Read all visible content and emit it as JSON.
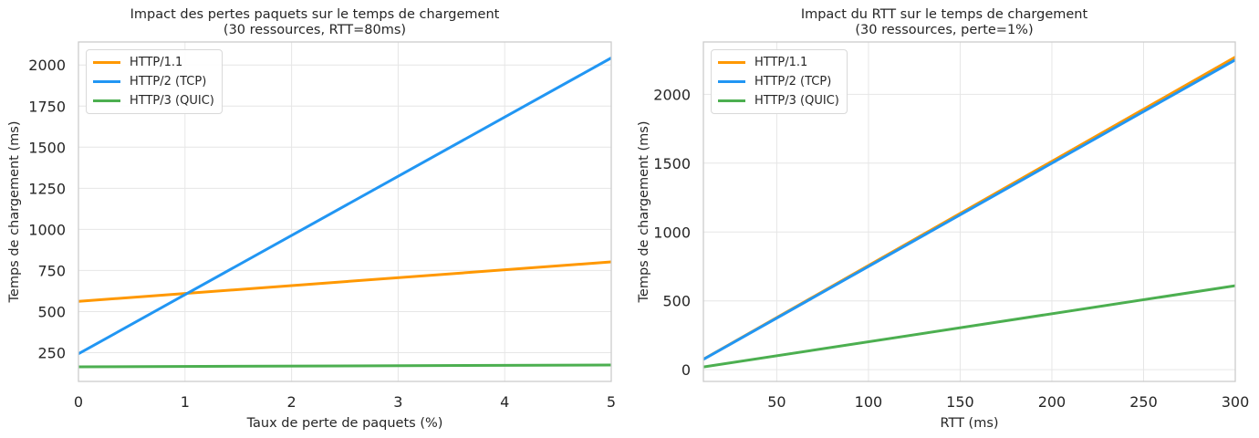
{
  "colors": {
    "http11": "#FF9800",
    "http2": "#2196F3",
    "http3": "#4CAF50",
    "grid": "#e6e6e6",
    "frame": "#cccccc"
  },
  "chart_data": [
    {
      "type": "line",
      "title_lines": [
        "Impact des pertes paquets sur le temps de chargement",
        "(30 ressources, RTT=80ms)"
      ],
      "xlabel": "Taux de perte de paquets (%)",
      "ylabel": "Temps de chargement (ms)",
      "xlim": [
        0,
        5
      ],
      "ylim": [
        75,
        2140
      ],
      "xticks": [
        0,
        1,
        2,
        3,
        4,
        5
      ],
      "yticks": [
        250,
        500,
        750,
        1000,
        1250,
        1500,
        1750,
        2000
      ],
      "grid": true,
      "legend_position": "top-left",
      "series": [
        {
          "name": "HTTP/1.1",
          "color_key": "http11",
          "x": [
            0,
            5
          ],
          "y": [
            562,
            802
          ]
        },
        {
          "name": "HTTP/2 (TCP)",
          "color_key": "http2",
          "x": [
            0,
            5
          ],
          "y": [
            243,
            2043
          ]
        },
        {
          "name": "HTTP/3 (QUIC)",
          "color_key": "http3",
          "x": [
            0,
            5
          ],
          "y": [
            164,
            175
          ]
        }
      ]
    },
    {
      "type": "line",
      "title_lines": [
        "Impact du RTT sur le temps de chargement",
        "(30 ressources, perte=1%)"
      ],
      "xlabel": "RTT (ms)",
      "ylabel": "Temps de chargement (ms)",
      "xlim": [
        10,
        300
      ],
      "ylim": [
        -85,
        2380
      ],
      "xticks": [
        50,
        100,
        150,
        200,
        250,
        300
      ],
      "yticks": [
        0,
        500,
        1000,
        1500,
        2000
      ],
      "grid": true,
      "legend_position": "top-left",
      "series": [
        {
          "name": "HTTP/1.1",
          "color_key": "http11",
          "x": [
            10,
            300
          ],
          "y": [
            76,
            2270
          ]
        },
        {
          "name": "HTTP/2 (TCP)",
          "color_key": "http2",
          "x": [
            10,
            300
          ],
          "y": [
            75,
            2250
          ]
        },
        {
          "name": "HTTP/3 (QUIC)",
          "color_key": "http3",
          "x": [
            10,
            300
          ],
          "y": [
            20,
            610
          ]
        }
      ]
    }
  ]
}
